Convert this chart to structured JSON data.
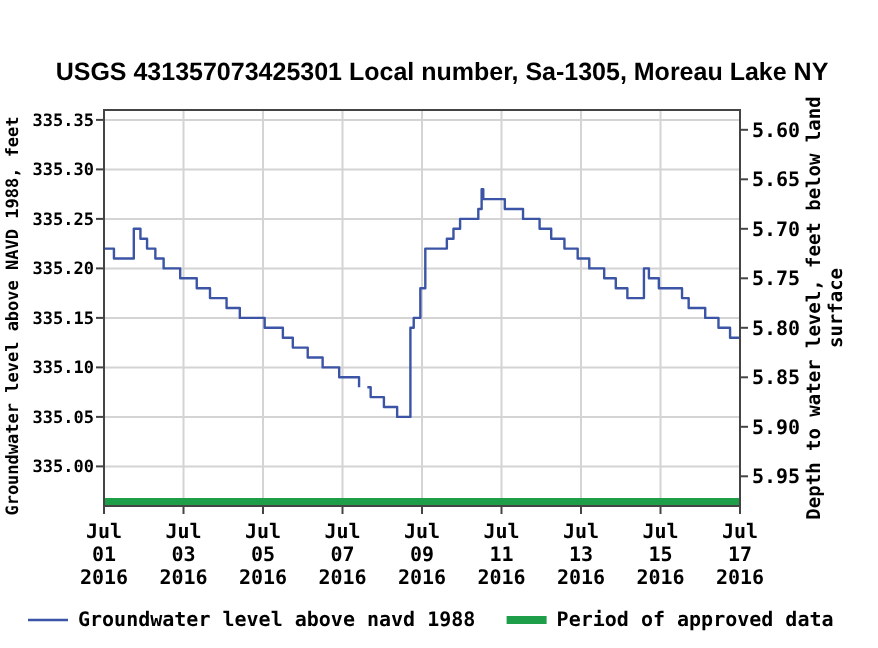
{
  "chart_data": {
    "type": "step",
    "title": "USGS 431357073425301 Local number, Sa-1305, Moreau Lake NY",
    "ylabel": "Groundwater level above NAVD 1988, feet",
    "y2label": "Depth to water level, feet below land\nsurface",
    "x": [
      "2016-07-01T00:00",
      "2016-07-01T06:00",
      "2016-07-01T18:00",
      "2016-07-01T22:00",
      "2016-07-02T02:00",
      "2016-07-02T07:00",
      "2016-07-02T12:00",
      "2016-07-02T22:00",
      "2016-07-03T08:00",
      "2016-07-03T16:00",
      "2016-07-04T02:00",
      "2016-07-04T10:00",
      "2016-07-05T01:00",
      "2016-07-05T12:00",
      "2016-07-05T18:00",
      "2016-07-06T03:00",
      "2016-07-06T12:00",
      "2016-07-06T22:00",
      "2016-07-07T10:00",
      "2016-07-07T12:00",
      "2016-07-07T15:00",
      "2016-07-07T17:00",
      "2016-07-08T01:00",
      "2016-07-08T09:00",
      "2016-07-08T17:00",
      "2016-07-08T19:00",
      "2016-07-08T23:00",
      "2016-07-09T02:00",
      "2016-07-09T15:00",
      "2016-07-09T19:00",
      "2016-07-09T23:00",
      "2016-07-10T10:00",
      "2016-07-10T12:00",
      "2016-07-10T13:00",
      "2016-07-11T02:00",
      "2016-07-11T13:00",
      "2016-07-11T23:00",
      "2016-07-12T06:00",
      "2016-07-12T14:00",
      "2016-07-12T22:00",
      "2016-07-13T05:00",
      "2016-07-13T14:00",
      "2016-07-13T21:00",
      "2016-07-14T04:00",
      "2016-07-14T14:00",
      "2016-07-14T17:00",
      "2016-07-14T23:00",
      "2016-07-15T13:00",
      "2016-07-15T17:00",
      "2016-07-16T03:00",
      "2016-07-16T11:00",
      "2016-07-16T18:00",
      "2016-07-17T00:00"
    ],
    "series": [
      {
        "name": "Groundwater level above navd 1988",
        "color": "#3b54a6",
        "values": [
          335.22,
          335.21,
          335.24,
          335.23,
          335.22,
          335.21,
          335.2,
          335.19,
          335.18,
          335.17,
          335.16,
          335.15,
          335.14,
          335.13,
          335.12,
          335.11,
          335.1,
          335.09,
          335.08,
          null,
          335.08,
          335.07,
          335.06,
          335.05,
          335.14,
          335.15,
          335.18,
          335.22,
          335.23,
          335.24,
          335.25,
          335.26,
          335.28,
          335.27,
          335.26,
          335.25,
          335.24,
          335.23,
          335.22,
          335.21,
          335.2,
          335.19,
          335.18,
          335.17,
          335.2,
          335.19,
          335.18,
          335.17,
          335.16,
          335.15,
          335.14,
          335.13,
          335.13
        ]
      }
    ],
    "xlim": [
      "2016-07-01",
      "2016-07-17"
    ],
    "xticks": [
      {
        "value": "2016-07-01",
        "label": "Jul\n01\n2016"
      },
      {
        "value": "2016-07-03",
        "label": "Jul\n03\n2016"
      },
      {
        "value": "2016-07-05",
        "label": "Jul\n05\n2016"
      },
      {
        "value": "2016-07-07",
        "label": "Jul\n07\n2016"
      },
      {
        "value": "2016-07-09",
        "label": "Jul\n09\n2016"
      },
      {
        "value": "2016-07-11",
        "label": "Jul\n11\n2016"
      },
      {
        "value": "2016-07-13",
        "label": "Jul\n13\n2016"
      },
      {
        "value": "2016-07-15",
        "label": "Jul\n15\n2016"
      },
      {
        "value": "2016-07-17",
        "label": "Jul\n17\n2016"
      }
    ],
    "ylim": [
      334.96,
      335.36
    ],
    "yticks": [
      {
        "value": 335.0,
        "label": "335.00"
      },
      {
        "value": 335.05,
        "label": "335.05"
      },
      {
        "value": 335.1,
        "label": "335.10"
      },
      {
        "value": 335.15,
        "label": "335.15"
      },
      {
        "value": 335.2,
        "label": "335.20"
      },
      {
        "value": 335.25,
        "label": "335.25"
      },
      {
        "value": 335.3,
        "label": "335.30"
      },
      {
        "value": 335.35,
        "label": "335.35"
      }
    ],
    "y2lim": [
      5.98,
      5.58
    ],
    "y2ticks": [
      {
        "value": 5.6,
        "label": "5.60"
      },
      {
        "value": 5.65,
        "label": "5.65"
      },
      {
        "value": 5.7,
        "label": "5.70"
      },
      {
        "value": 5.75,
        "label": "5.75"
      },
      {
        "value": 5.8,
        "label": "5.80"
      },
      {
        "value": 5.85,
        "label": "5.85"
      },
      {
        "value": 5.9,
        "label": "5.90"
      },
      {
        "value": 5.95,
        "label": "5.95"
      }
    ],
    "annotations": [
      "Period of approved data"
    ],
    "grid": true,
    "legend": "bottom",
    "line_style": "solid",
    "marker": "none"
  }
}
